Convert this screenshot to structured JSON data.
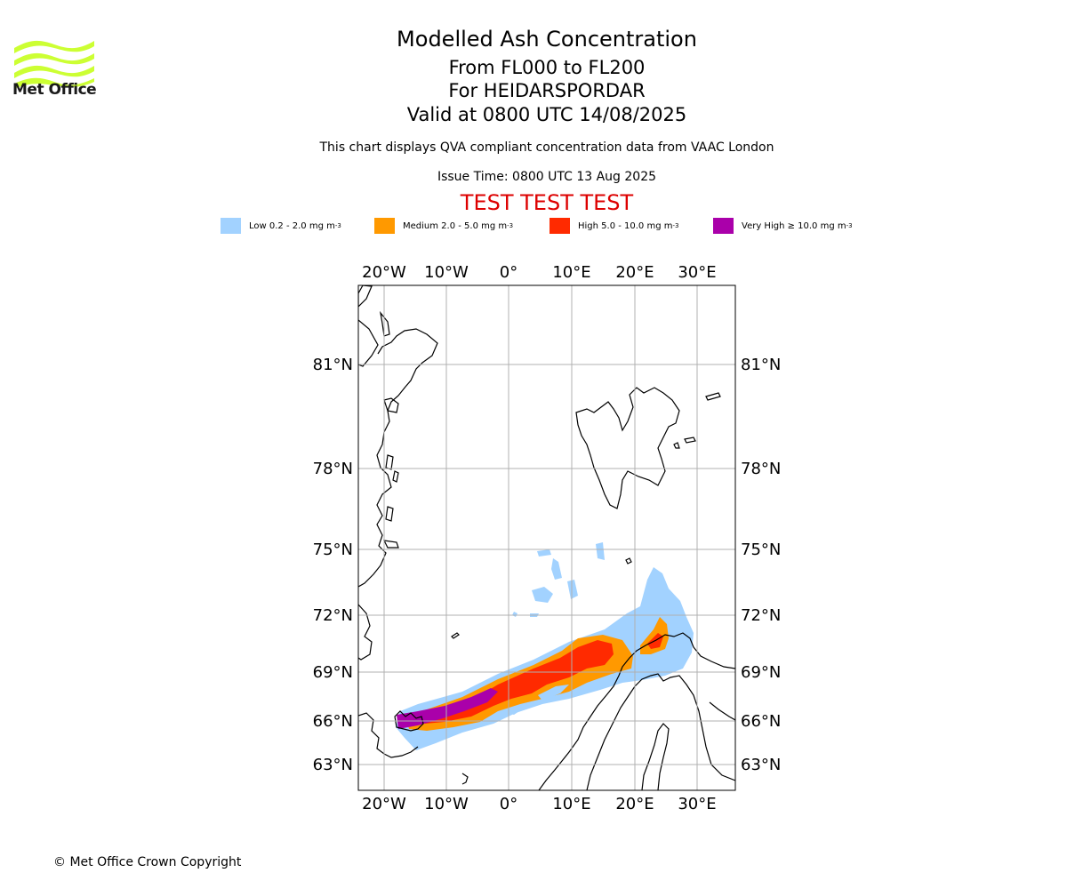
{
  "header": {
    "title": "Modelled Ash Concentration",
    "levels": "From FL000 to FL200",
    "volcano": "For HEIDARSPORDAR",
    "valid": "Valid at 0800 UTC 14/08/2025",
    "description": "This chart displays QVA compliant concentration data from VAAC London",
    "issue_time": "Issue Time: 0800 UTC 13 Aug 2025",
    "test_banner": "TEST TEST TEST"
  },
  "logo": {
    "text": "Met Office",
    "color": "#ccff33"
  },
  "legend": [
    {
      "label": "Low 0.2 - 2.0 mg m",
      "sup": "-3",
      "color": "#a2d2ff"
    },
    {
      "label": "Medium 2.0 - 5.0 mg m",
      "sup": "-3",
      "color": "#ff9900"
    },
    {
      "label": "High 5.0 - 10.0 mg m",
      "sup": "-3",
      "color": "#ff2a00"
    },
    {
      "label": "Very High ≥ 10.0 mg m",
      "sup": "-3",
      "color": "#aa00aa"
    }
  ],
  "map": {
    "lon_ticks": [
      "20°W",
      "10°W",
      "0°",
      "10°E",
      "20°E",
      "30°E"
    ],
    "lat_ticks": [
      "81°N",
      "78°N",
      "75°N",
      "72°N",
      "69°N",
      "66°N",
      "63°N"
    ],
    "grid": true
  },
  "footer": {
    "copyright": "© Met Office Crown Copyright"
  }
}
